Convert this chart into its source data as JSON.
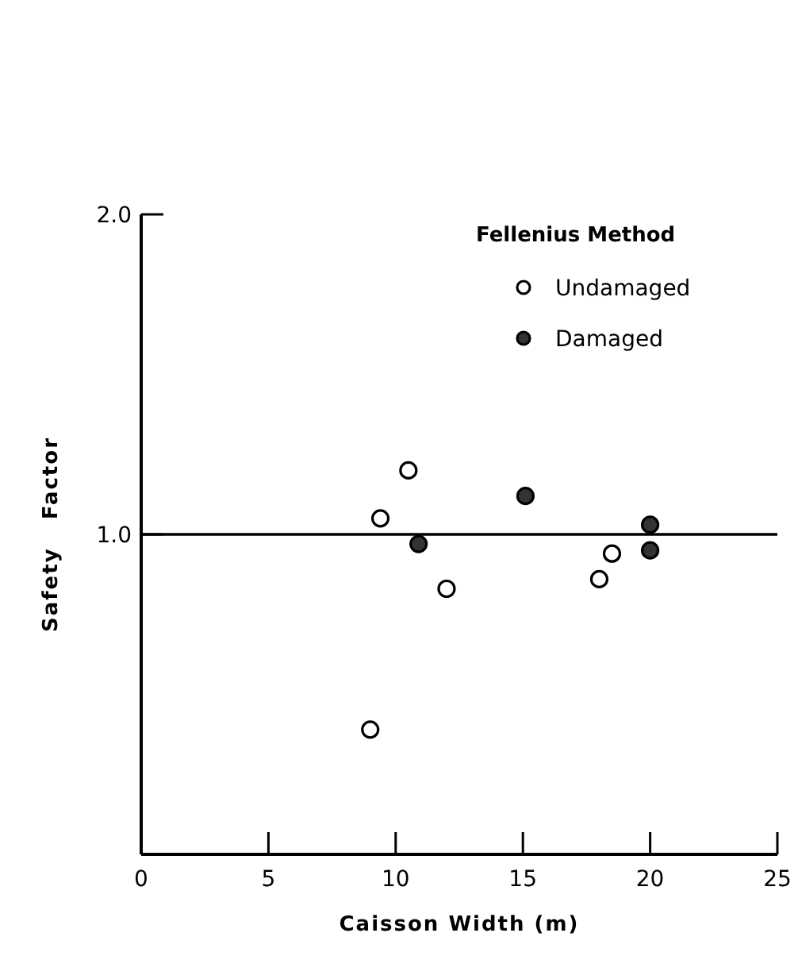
{
  "chart_data": {
    "type": "scatter",
    "xlabel": "Caisson Width (m)",
    "ylabel": "Safety Factor",
    "legend_title": "Fellenius Method",
    "legend": "top right",
    "marker": "circle",
    "grid": false,
    "xlim": [
      0,
      25
    ],
    "xticks": [
      0,
      5,
      10,
      15,
      20,
      25
    ],
    "ylim": [
      0,
      2
    ],
    "yticks": [
      {
        "value": 1,
        "label": "1.0"
      },
      {
        "value": 2,
        "label": "2.0"
      }
    ],
    "ref_lines": [
      {
        "axis": "y",
        "value": 1,
        "color": "#000000"
      }
    ],
    "series": [
      {
        "name": "Undamaged",
        "color": "#ffffff",
        "x": [
          9.4,
          10.5,
          9.0,
          12.0,
          18.0,
          18.5
        ],
        "values": [
          1.05,
          1.2,
          0.39,
          0.83,
          0.86,
          0.94
        ]
      },
      {
        "name": "Damaged",
        "color": "#333333",
        "x": [
          10.9,
          15.1,
          20.0,
          20.0
        ],
        "values": [
          0.97,
          1.12,
          1.03,
          0.95
        ]
      }
    ]
  }
}
